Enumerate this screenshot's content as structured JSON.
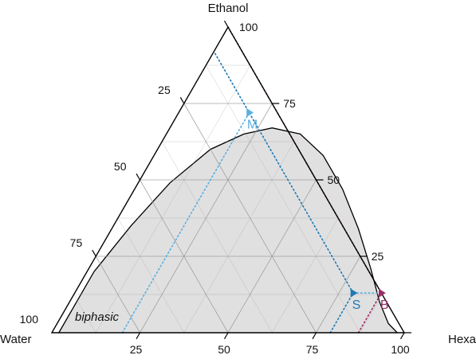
{
  "chart_data": {
    "type": "ternary",
    "components": {
      "top": "Ethanol",
      "left": "Water",
      "right": "Hexane"
    },
    "ticks": {
      "left_axis": [
        "25",
        "50",
        "75",
        "100"
      ],
      "right_axis": [
        "100",
        "75",
        "50",
        "25"
      ],
      "bottom_axis": [
        "25",
        "50",
        "75",
        "100"
      ]
    },
    "grid": true,
    "binodal_curve": {
      "points": [
        {
          "ethanol": 0,
          "hexane": 2
        },
        {
          "ethanol": 20,
          "hexane": 2
        },
        {
          "ethanol": 35,
          "hexane": 5
        },
        {
          "ethanol": 49,
          "hexane": 9
        },
        {
          "ethanol": 60,
          "hexane": 15
        },
        {
          "ethanol": 65,
          "hexane": 22
        },
        {
          "ethanol": 67,
          "hexane": 29
        },
        {
          "ethanol": 65,
          "hexane": 38
        },
        {
          "ethanol": 58,
          "hexane": 48
        },
        {
          "ethanol": 47,
          "hexane": 59
        },
        {
          "ethanol": 34,
          "hexane": 70
        },
        {
          "ethanol": 21,
          "hexane": 80
        },
        {
          "ethanol": 10,
          "hexane": 88
        },
        {
          "ethanol": 3,
          "hexane": 94
        },
        {
          "ethanol": 0,
          "hexane": 98
        }
      ],
      "region_label": "biphasic"
    },
    "points": [
      {
        "label": "M",
        "ethanol": 72,
        "hexane": 20,
        "water": 8,
        "color": "#5aafe0"
      },
      {
        "label": "S",
        "ethanol": 13,
        "hexane": 79,
        "water": 8,
        "color": "#1f78b4"
      },
      {
        "label": "B",
        "ethanol": 13,
        "hexane": 87,
        "water": 0,
        "color": "#9b2c66"
      }
    ],
    "guide_lines": [
      {
        "name": "M-hexane-guide",
        "color": "#5aafe0",
        "constant": "hexane",
        "value": 20,
        "from_ethanol": 0,
        "to_ethanol": 72
      },
      {
        "name": "S-hexane-guide",
        "color": "#1f78b4",
        "constant": "hexane",
        "value": 79,
        "from_ethanol": 0,
        "to_ethanol": 13
      },
      {
        "name": "S-water-guide",
        "color": "#1f78b4",
        "constant": "water",
        "value": 8,
        "from_ethanol": 13,
        "to_ethanol": 92
      },
      {
        "name": "B-hexane-guide",
        "color": "#9b2c66",
        "constant": "hexane",
        "value": 87,
        "from_ethanol": 0,
        "to_ethanol": 13
      },
      {
        "name": "B-water-guide",
        "color": "#9b2c66",
        "constant": "water",
        "value": 0,
        "from_ethanol": 13,
        "to_ethanol": 100
      },
      {
        "name": "S-tieline-guide",
        "color": "#5aafe0",
        "constant": "ethanol",
        "value": 13,
        "from_hexane": 79,
        "to_hexane": 87
      }
    ],
    "colors": {
      "region_fill": "#e0e0e0",
      "grid": "#9a9a9a",
      "frame": "#000000"
    }
  }
}
